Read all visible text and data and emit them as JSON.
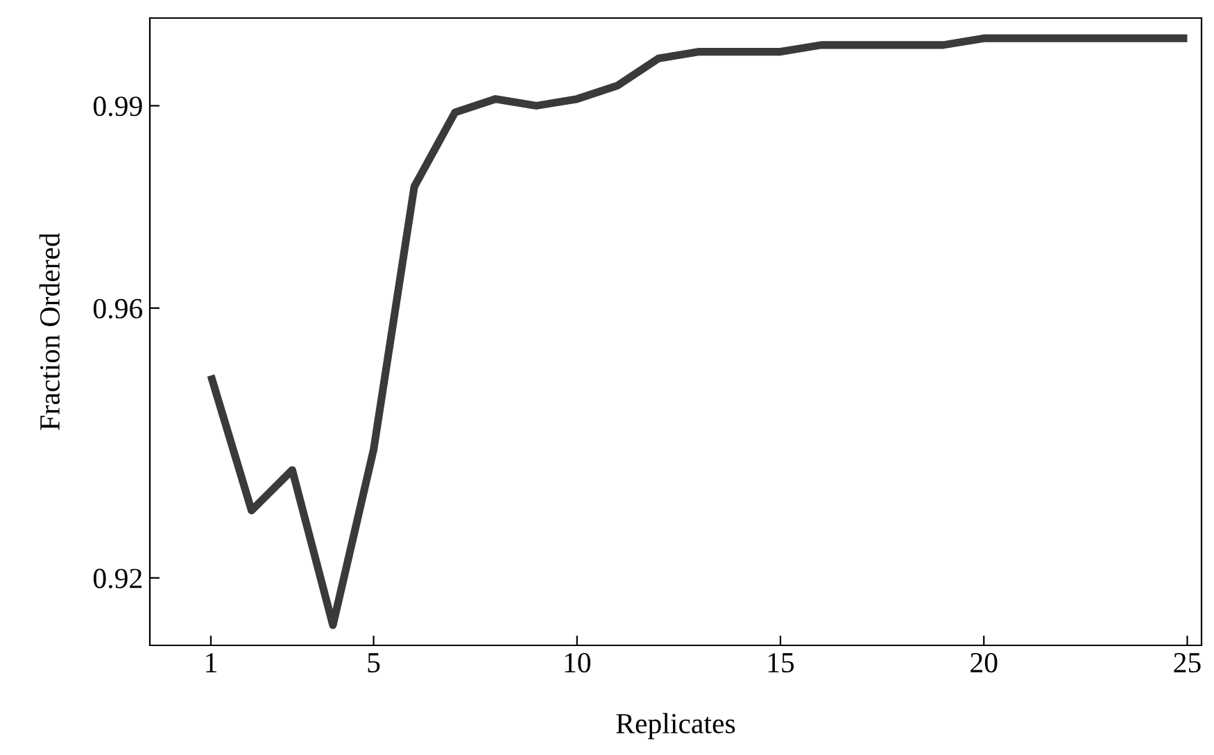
{
  "chart_data": {
    "type": "line",
    "xlabel": "Replicates",
    "ylabel": "Fraction Ordered",
    "x": [
      1,
      2,
      3,
      4,
      5,
      6,
      7,
      8,
      9,
      10,
      11,
      12,
      13,
      14,
      15,
      16,
      17,
      18,
      19,
      20,
      21,
      22,
      23,
      24,
      25
    ],
    "series": [
      {
        "color": "#3a3a3a",
        "values": [
          0.95,
          0.93,
          0.936,
          0.913,
          0.939,
          0.978,
          0.989,
          0.991,
          0.99,
          0.991,
          0.993,
          0.997,
          0.998,
          0.998,
          0.998,
          0.999,
          0.999,
          0.999,
          0.999,
          1.0,
          1.0,
          1.0,
          1.0,
          1.0,
          1.0
        ]
      }
    ],
    "xlim": [
      -0.5,
      25.35
    ],
    "ylim": [
      0.91,
      1.003
    ],
    "xticks": [
      1,
      5,
      10,
      15,
      20,
      25
    ],
    "yticks": [
      0.92,
      0.96,
      0.99
    ],
    "grid": false,
    "legend": false,
    "marker": "none",
    "line_style": "solid"
  }
}
